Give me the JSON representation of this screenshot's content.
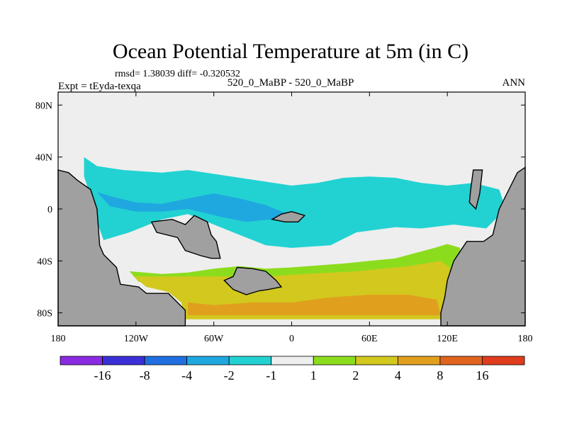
{
  "chart_data": {
    "type": "heatmap",
    "title": "Ocean Potential Temperature at 5m (in C)",
    "stats_line": "rmsd= 1.38039 diff= -0.320532",
    "left_label": "Expt = tEyda-texqa",
    "center_label": "520_0_MaBP - 520_0_MaBP",
    "right_label": "ANN",
    "x_ticks": [
      {
        "value": -180,
        "label": "180"
      },
      {
        "value": -120,
        "label": "120W"
      },
      {
        "value": -60,
        "label": "60W"
      },
      {
        "value": 0,
        "label": "0"
      },
      {
        "value": 60,
        "label": "60E"
      },
      {
        "value": 120,
        "label": "120E"
      },
      {
        "value": 180,
        "label": "180"
      }
    ],
    "y_ticks": [
      {
        "value": 80,
        "label": "80N"
      },
      {
        "value": 40,
        "label": "40N"
      },
      {
        "value": 0,
        "label": "0"
      },
      {
        "value": -40,
        "label": "40S"
      },
      {
        "value": -80,
        "label": "80S"
      }
    ],
    "xlim": [
      -180,
      180
    ],
    "ylim": [
      -90,
      90
    ],
    "colorbar": {
      "colors": [
        "#8a2be2",
        "#3b2fd6",
        "#1f6fe0",
        "#1fa8e0",
        "#22d2d2",
        "#eeeeee",
        "#8cdc1e",
        "#d2c81e",
        "#e0a01e",
        "#e0641e",
        "#e03c1e"
      ],
      "labels": [
        "-16",
        "-8",
        "-4",
        "-2",
        "-1",
        "1",
        "2",
        "4",
        "8",
        "16"
      ]
    },
    "land_color": "#a0a0a0",
    "regions": [
      {
        "name": "land-west",
        "level": "land",
        "points": [
          [
            -180,
            30
          ],
          [
            -172,
            28
          ],
          [
            -165,
            22
          ],
          [
            -155,
            15
          ],
          [
            -150,
            0
          ],
          [
            -148,
            -28
          ],
          [
            -145,
            -35
          ],
          [
            -135,
            -45
          ],
          [
            -132,
            -58
          ],
          [
            -118,
            -60
          ],
          [
            -112,
            -65
          ],
          [
            -95,
            -65
          ],
          [
            -88,
            -72
          ],
          [
            -82,
            -78
          ],
          [
            -82,
            -90
          ],
          [
            -180,
            -90
          ]
        ]
      },
      {
        "name": "land-east",
        "level": "land",
        "points": [
          [
            180,
            32
          ],
          [
            174,
            28
          ],
          [
            170,
            20
          ],
          [
            160,
            0
          ],
          [
            155,
            -20
          ],
          [
            148,
            -25
          ],
          [
            135,
            -25
          ],
          [
            125,
            -40
          ],
          [
            120,
            -55
          ],
          [
            118,
            -68
          ],
          [
            115,
            -80
          ],
          [
            115,
            -90
          ],
          [
            180,
            -90
          ]
        ]
      },
      {
        "name": "land-island-west",
        "level": "land",
        "points": [
          [
            -108,
            -10
          ],
          [
            -92,
            -8
          ],
          [
            -82,
            -12
          ],
          [
            -75,
            -5
          ],
          [
            -65,
            -10
          ],
          [
            -62,
            -20
          ],
          [
            -58,
            -25
          ],
          [
            -55,
            -38
          ],
          [
            -62,
            -38
          ],
          [
            -70,
            -36
          ],
          [
            -82,
            -32
          ],
          [
            -88,
            -22
          ],
          [
            -104,
            -18
          ]
        ]
      },
      {
        "name": "land-island-mid",
        "level": "land",
        "points": [
          [
            -8,
            -4
          ],
          [
            0,
            -2
          ],
          [
            10,
            -5
          ],
          [
            5,
            -10
          ],
          [
            -5,
            -10
          ],
          [
            -15,
            -8
          ]
        ]
      },
      {
        "name": "land-island-east",
        "level": "land",
        "points": [
          [
            140,
            30
          ],
          [
            147,
            30
          ],
          [
            145,
            12
          ],
          [
            142,
            0
          ],
          [
            137,
            5
          ],
          [
            138,
            15
          ]
        ]
      },
      {
        "name": "land-island-south",
        "level": "land",
        "points": [
          [
            -42,
            -45
          ],
          [
            -30,
            -46
          ],
          [
            -20,
            -48
          ],
          [
            -12,
            -55
          ],
          [
            -8,
            -60
          ],
          [
            -18,
            -62
          ],
          [
            -25,
            -63
          ],
          [
            -35,
            -66
          ],
          [
            -45,
            -62
          ],
          [
            -52,
            -55
          ],
          [
            -45,
            -52
          ]
        ]
      },
      {
        "name": "tropics-cyan",
        "level": "-2",
        "points": [
          [
            -160,
            40
          ],
          [
            -150,
            33
          ],
          [
            -130,
            30
          ],
          [
            -100,
            28
          ],
          [
            -80,
            30
          ],
          [
            -60,
            27
          ],
          [
            -40,
            24
          ],
          [
            -20,
            21
          ],
          [
            0,
            18
          ],
          [
            20,
            20
          ],
          [
            40,
            24
          ],
          [
            60,
            25
          ],
          [
            80,
            24
          ],
          [
            100,
            20
          ],
          [
            120,
            18
          ],
          [
            140,
            20
          ],
          [
            160,
            15
          ],
          [
            165,
            0
          ],
          [
            150,
            -15
          ],
          [
            125,
            -12
          ],
          [
            100,
            -15
          ],
          [
            80,
            -14
          ],
          [
            50,
            -18
          ],
          [
            30,
            -28
          ],
          [
            0,
            -30
          ],
          [
            -20,
            -28
          ],
          [
            -40,
            -20
          ],
          [
            -60,
            -12
          ],
          [
            -80,
            -4
          ],
          [
            -100,
            -8
          ],
          [
            -125,
            -18
          ],
          [
            -145,
            -24
          ],
          [
            -150,
            -10
          ],
          [
            -155,
            10
          ],
          [
            -160,
            25
          ]
        ]
      },
      {
        "name": "tropics-blue",
        "level": "-4",
        "points": [
          [
            -150,
            13
          ],
          [
            -140,
            10
          ],
          [
            -120,
            5
          ],
          [
            -100,
            4
          ],
          [
            -80,
            8
          ],
          [
            -60,
            12
          ],
          [
            -40,
            8
          ],
          [
            -20,
            3
          ],
          [
            -5,
            -3
          ],
          [
            -15,
            -8
          ],
          [
            -35,
            -10
          ],
          [
            -55,
            -6
          ],
          [
            -80,
            0
          ],
          [
            -100,
            -2
          ],
          [
            -120,
            -2
          ],
          [
            -140,
            2
          ]
        ]
      },
      {
        "name": "south-green-band",
        "level": "2",
        "points": [
          [
            -125,
            -48
          ],
          [
            -100,
            -50
          ],
          [
            -80,
            -49
          ],
          [
            -60,
            -46
          ],
          [
            -40,
            -44
          ],
          [
            -20,
            -46
          ],
          [
            0,
            -45
          ],
          [
            40,
            -42
          ],
          [
            80,
            -38
          ],
          [
            110,
            -30
          ],
          [
            120,
            -27
          ],
          [
            130,
            -30
          ],
          [
            128,
            -42
          ],
          [
            122,
            -50
          ],
          [
            120,
            -70
          ],
          [
            105,
            -66
          ],
          [
            80,
            -60
          ],
          [
            50,
            -60
          ],
          [
            20,
            -58
          ],
          [
            -20,
            -54
          ],
          [
            -60,
            -55
          ],
          [
            -95,
            -60
          ],
          [
            -118,
            -56
          ]
        ]
      },
      {
        "name": "south-yellow",
        "level": "4",
        "points": [
          [
            -122,
            -52
          ],
          [
            -95,
            -52
          ],
          [
            -70,
            -52
          ],
          [
            -45,
            -52
          ],
          [
            -20,
            -52
          ],
          [
            10,
            -50
          ],
          [
            50,
            -48
          ],
          [
            90,
            -44
          ],
          [
            115,
            -40
          ],
          [
            122,
            -45
          ],
          [
            120,
            -85
          ],
          [
            -82,
            -85
          ],
          [
            -85,
            -72
          ],
          [
            -95,
            -64
          ],
          [
            -112,
            -60
          ]
        ]
      },
      {
        "name": "south-orange",
        "level": "8",
        "points": [
          [
            -80,
            -72
          ],
          [
            -60,
            -74
          ],
          [
            -30,
            -72
          ],
          [
            0,
            -72
          ],
          [
            30,
            -68
          ],
          [
            60,
            -66
          ],
          [
            90,
            -66
          ],
          [
            112,
            -70
          ],
          [
            115,
            -82
          ],
          [
            -80,
            -82
          ]
        ]
      }
    ]
  }
}
